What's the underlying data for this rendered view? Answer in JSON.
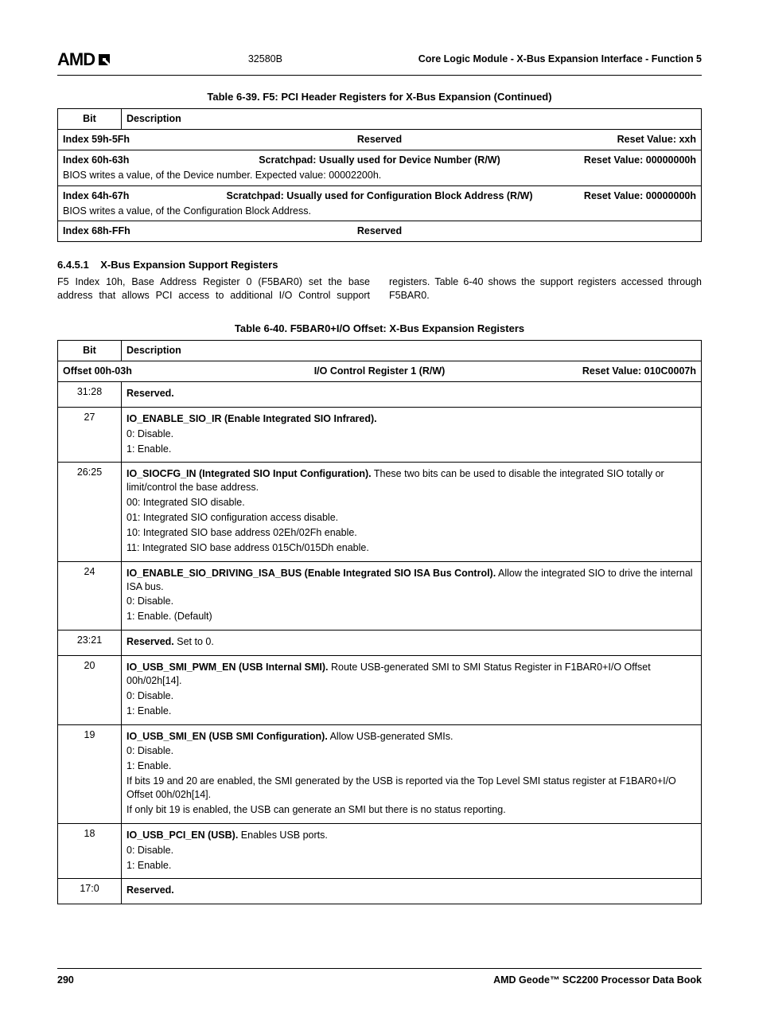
{
  "header": {
    "logo_text": "AMD",
    "doc_num": "32580B",
    "right": "Core Logic Module - X-Bus Expansion Interface - Function 5"
  },
  "table39": {
    "caption": "Table 6-39.  F5: PCI Header Registers for X-Bus Expansion  (Continued)",
    "col_bit": "Bit",
    "col_desc": "Description",
    "rows": [
      {
        "idx": "Index 59h-5Fh",
        "title": "Reserved",
        "reset": "Reset Value: xxh",
        "note": ""
      },
      {
        "idx": "Index 60h-63h",
        "title": "Scratchpad: Usually used for Device Number (R/W)",
        "reset": "Reset Value: 00000000h",
        "note": "BIOS writes a value, of the Device number. Expected value: 00002200h."
      },
      {
        "idx": "Index 64h-67h",
        "title": "Scratchpad: Usually used for Configuration Block Address (R/W)",
        "reset": "Reset Value: 00000000h",
        "note": "BIOS writes a value, of the Configuration Block Address."
      },
      {
        "idx": "Index 68h-FFh",
        "title": "Reserved",
        "reset": "",
        "note": ""
      }
    ]
  },
  "section": {
    "num": "6.4.5.1",
    "title": "X-Bus Expansion Support Registers",
    "body": "F5 Index 10h, Base Address Register 0 (F5BAR0) set the base address that allows PCI access to additional I/O Control support registers. Table 6-40 shows the support registers accessed through F5BAR0."
  },
  "table40": {
    "caption": "Table 6-40.  F5BAR0+I/O Offset: X-Bus Expansion Registers",
    "col_bit": "Bit",
    "col_desc": "Description",
    "offset_row": {
      "label": "Offset 00h-03h",
      "title": "I/O Control Register 1 (R/W)",
      "reset": "Reset Value: 010C0007h"
    },
    "rows": [
      {
        "bit": "31:28",
        "lines": [
          {
            "b": "Reserved.",
            "t": ""
          }
        ]
      },
      {
        "bit": "27",
        "lines": [
          {
            "b": "IO_ENABLE_SIO_IR (Enable Integrated SIO Infrared).",
            "t": ""
          },
          {
            "b": "",
            "t": "0:  Disable."
          },
          {
            "b": "",
            "t": "1:  Enable."
          }
        ]
      },
      {
        "bit": "26:25",
        "lines": [
          {
            "b": "IO_SIOCFG_IN (Integrated SIO Input Configuration).",
            "t": " These two bits can be used to disable the integrated SIO totally or limit/control the base address."
          },
          {
            "b": "",
            "t": "00:  Integrated SIO disable."
          },
          {
            "b": "",
            "t": "01:  Integrated SIO configuration access disable."
          },
          {
            "b": "",
            "t": "10:  Integrated SIO base address 02Eh/02Fh enable."
          },
          {
            "b": "",
            "t": "11:  Integrated SIO base address 015Ch/015Dh enable."
          }
        ]
      },
      {
        "bit": "24",
        "lines": [
          {
            "b": "IO_ENABLE_SIO_DRIVING_ISA_BUS (Enable Integrated SIO ISA Bus Control).",
            "t": " Allow the integrated SIO to drive the internal ISA bus."
          },
          {
            "b": "",
            "t": "0:  Disable."
          },
          {
            "b": "",
            "t": "1:  Enable. (Default)"
          }
        ]
      },
      {
        "bit": "23:21",
        "lines": [
          {
            "b": "Reserved.",
            "t": " Set to 0."
          }
        ]
      },
      {
        "bit": "20",
        "lines": [
          {
            "b": "IO_USB_SMI_PWM_EN (USB Internal SMI).",
            "t": " Route USB-generated SMI to SMI Status Register in F1BAR0+I/O Offset 00h/02h[14]."
          },
          {
            "b": "",
            "t": "0:  Disable."
          },
          {
            "b": "",
            "t": "1:  Enable."
          }
        ]
      },
      {
        "bit": "19",
        "lines": [
          {
            "b": "IO_USB_SMI_EN (USB SMI Configuration).",
            "t": " Allow USB-generated SMIs."
          },
          {
            "b": "",
            "t": "0:  Disable."
          },
          {
            "b": "",
            "t": "1:  Enable."
          },
          {
            "b": "",
            "t": "If bits 19 and 20 are enabled, the SMI generated by the USB is reported via the Top Level SMI status register at F1BAR0+I/O Offset 00h/02h[14]."
          },
          {
            "b": "",
            "t": "If only bit 19 is enabled, the USB can generate an SMI but there is no status reporting."
          }
        ]
      },
      {
        "bit": "18",
        "lines": [
          {
            "b": "IO_USB_PCI_EN (USB).",
            "t": " Enables USB ports."
          },
          {
            "b": "",
            "t": "0:  Disable."
          },
          {
            "b": "",
            "t": "1:  Enable."
          }
        ]
      },
      {
        "bit": "17:0",
        "lines": [
          {
            "b": "Reserved.",
            "t": ""
          }
        ]
      }
    ]
  },
  "footer": {
    "page": "290",
    "book": "AMD Geode™ SC2200  Processor Data Book"
  }
}
